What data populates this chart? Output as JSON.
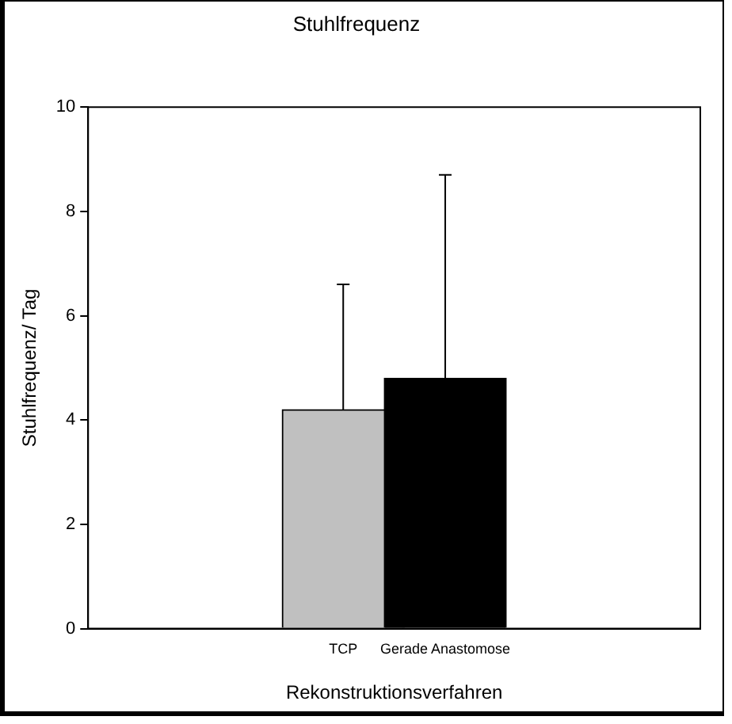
{
  "chart_data": {
    "type": "bar",
    "title": "Stuhlfrequenz",
    "xlabel": "Rekonstruktionsverfahren",
    "ylabel": "Stuhlfrequenz/ Tag",
    "categories": [
      "TCP",
      "Gerade Anastomose"
    ],
    "values": [
      4.2,
      4.8
    ],
    "colors": [
      "#c0c0c0",
      "#000000"
    ],
    "errors": [
      [
        4.2,
        6.6
      ],
      [
        4.8,
        8.7
      ]
    ],
    "ylim": [
      0,
      10
    ],
    "yticks": [
      0,
      2,
      4,
      6,
      8,
      10
    ],
    "grid": false,
    "legend": false
  }
}
